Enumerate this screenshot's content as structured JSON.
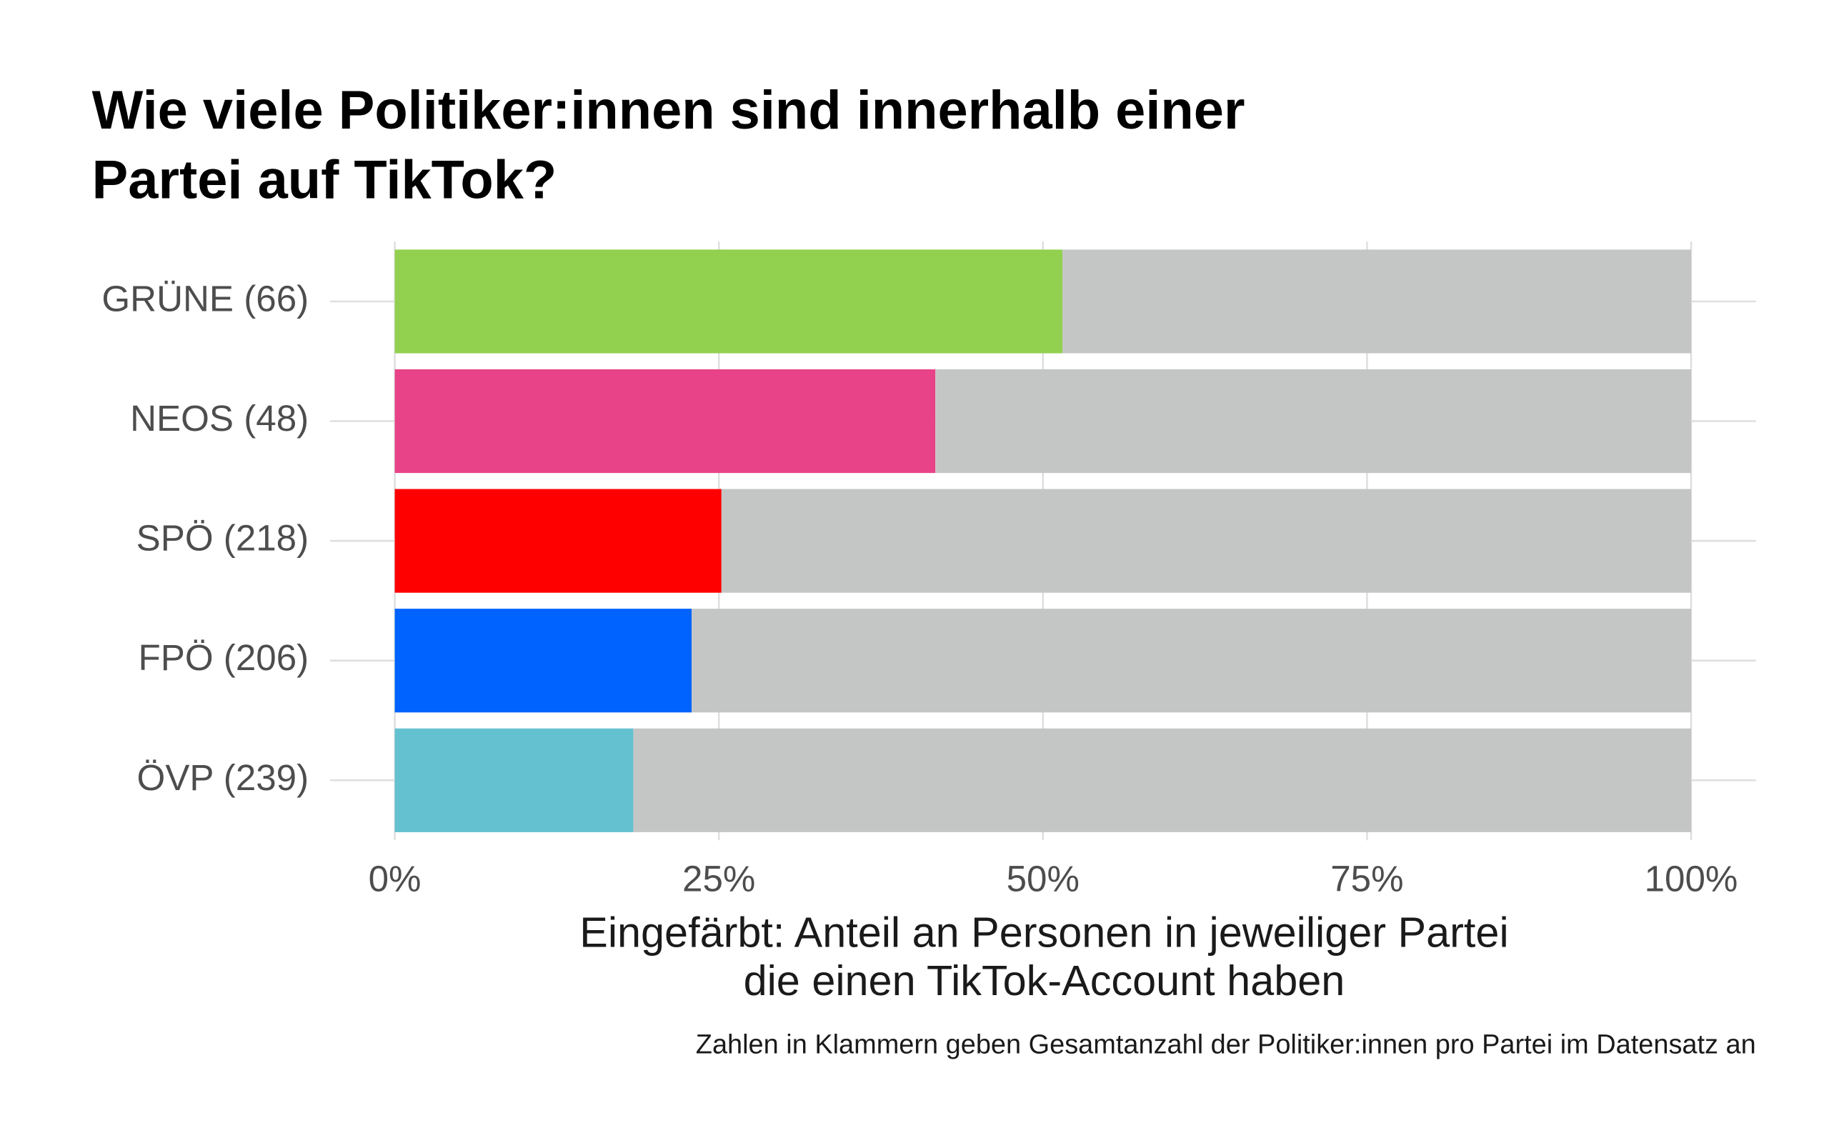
{
  "chart_data": {
    "type": "bar",
    "orientation": "horizontal",
    "stacked": true,
    "title": [
      "Wie viele Politiker:innen sind innerhalb einer",
      "Partei auf TikTok?"
    ],
    "x_label": [
      "Eingefärbt: Anteil an Personen in jeweiliger Partei",
      "die einen TikTok-Account haben"
    ],
    "caption": "Zahlen in Klammern geben Gesamtanzahl der Politiker:innen pro Partei im Datensatz an",
    "categories": [
      "GRÜNE (66)",
      "NEOS (48)",
      "SPÖ (218)",
      "FPÖ (206)",
      "ÖVP (239)"
    ],
    "series": [
      {
        "colors": [
          "#92d050",
          "#e84388",
          "#ff0000",
          "#0062ff",
          "#63c1d0"
        ],
        "values": [
          51.5,
          41.7,
          25.2,
          22.9,
          18.4
        ]
      },
      {
        "color": "#c4c6c5",
        "values": [
          48.5,
          58.3,
          74.8,
          77.1,
          81.6
        ]
      }
    ],
    "xlim": [
      -5,
      105
    ],
    "xticks": [
      {
        "value": 0,
        "label": "0%"
      },
      {
        "value": 25,
        "label": "25%"
      },
      {
        "value": 50,
        "label": "50%"
      },
      {
        "value": 75,
        "label": "75%"
      },
      {
        "value": 100,
        "label": "100%"
      }
    ],
    "grid": true
  }
}
